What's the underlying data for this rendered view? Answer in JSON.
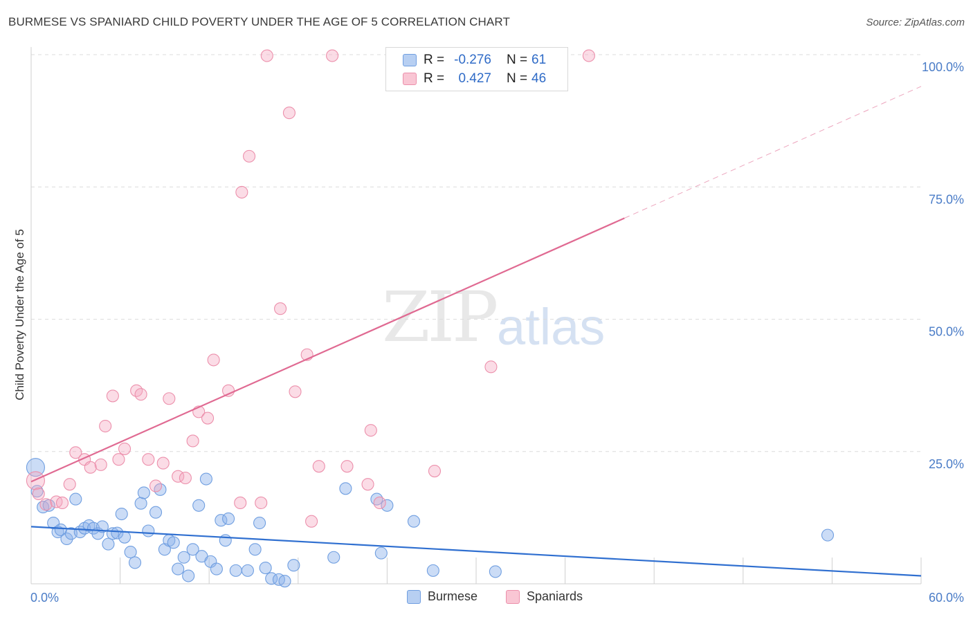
{
  "title": "BURMESE VS SPANIARD CHILD POVERTY UNDER THE AGE OF 5 CORRELATION CHART",
  "source": "Source: ZipAtlas.com",
  "watermark": {
    "zip": "ZIP",
    "atlas": "atlas"
  },
  "legend": {
    "r_label": "R =",
    "n_label": "N =",
    "rows": [
      {
        "r": "-0.276",
        "n": "61",
        "fill": "#b7cff2",
        "stroke": "#6f9ee0"
      },
      {
        "r": "0.427",
        "n": "46",
        "fill": "#f9c6d4",
        "stroke": "#ec8fab"
      }
    ]
  },
  "bottom_legend": [
    {
      "label": "Burmese",
      "fill": "#b7cff2",
      "stroke": "#6f9ee0"
    },
    {
      "label": "Spaniards",
      "fill": "#f9c6d4",
      "stroke": "#ec8fab"
    }
  ],
  "chart_data": {
    "type": "scatter",
    "ylabel": "Child Poverty Under the Age of 5",
    "xlim": [
      0,
      60
    ],
    "ylim": [
      0,
      100
    ],
    "x_ticks": [
      "0.0%",
      "60.0%"
    ],
    "y_ticks": [
      {
        "value": 25,
        "label": "25.0%"
      },
      {
        "value": 50,
        "label": "50.0%"
      },
      {
        "value": 75,
        "label": "75.0%"
      },
      {
        "value": 100,
        "label": "100.0%"
      }
    ],
    "grid": true,
    "series": [
      {
        "name": "Burmese",
        "color": "#7aa6e6",
        "line_color": "#2f6fd0",
        "trend": {
          "x0": 0,
          "y0": 10.8,
          "x1": 60,
          "y1": 1.5,
          "dashed_from": 60
        },
        "points": [
          [
            0.3,
            22.0
          ],
          [
            0.4,
            17.5
          ],
          [
            0.8,
            14.5
          ],
          [
            1.2,
            14.8
          ],
          [
            1.5,
            11.5
          ],
          [
            1.8,
            9.8
          ],
          [
            2.0,
            10.2
          ],
          [
            2.4,
            8.5
          ],
          [
            2.7,
            9.5
          ],
          [
            3.0,
            16.0
          ],
          [
            3.3,
            9.8
          ],
          [
            3.6,
            10.5
          ],
          [
            3.9,
            11.0
          ],
          [
            4.2,
            10.5
          ],
          [
            4.5,
            9.5
          ],
          [
            4.8,
            10.8
          ],
          [
            5.2,
            7.5
          ],
          [
            5.5,
            9.5
          ],
          [
            5.8,
            9.6
          ],
          [
            6.1,
            13.2
          ],
          [
            6.3,
            8.8
          ],
          [
            6.7,
            6.0
          ],
          [
            7.0,
            4.0
          ],
          [
            7.4,
            15.2
          ],
          [
            7.6,
            17.2
          ],
          [
            7.9,
            10.0
          ],
          [
            8.4,
            13.5
          ],
          [
            8.7,
            17.8
          ],
          [
            9.0,
            6.5
          ],
          [
            9.3,
            8.2
          ],
          [
            9.6,
            7.8
          ],
          [
            9.9,
            2.8
          ],
          [
            10.3,
            5.0
          ],
          [
            10.6,
            1.5
          ],
          [
            10.9,
            6.5
          ],
          [
            11.3,
            14.8
          ],
          [
            11.5,
            5.2
          ],
          [
            11.8,
            19.8
          ],
          [
            12.1,
            4.2
          ],
          [
            12.5,
            2.8
          ],
          [
            12.8,
            12.0
          ],
          [
            13.1,
            8.2
          ],
          [
            13.3,
            12.3
          ],
          [
            13.8,
            2.5
          ],
          [
            14.6,
            2.5
          ],
          [
            15.1,
            6.5
          ],
          [
            15.4,
            11.5
          ],
          [
            15.8,
            3.0
          ],
          [
            16.2,
            1.0
          ],
          [
            16.7,
            0.8
          ],
          [
            17.1,
            0.5
          ],
          [
            17.7,
            3.5
          ],
          [
            20.4,
            5.0
          ],
          [
            21.2,
            18.0
          ],
          [
            23.3,
            16.0
          ],
          [
            23.6,
            5.8
          ],
          [
            24.0,
            14.8
          ],
          [
            25.8,
            11.8
          ],
          [
            27.1,
            2.5
          ],
          [
            31.3,
            2.3
          ],
          [
            53.7,
            9.2
          ]
        ]
      },
      {
        "name": "Spaniards",
        "color": "#f3a6bd",
        "line_color": "#e06a92",
        "trend": {
          "x0": 0,
          "y0": 19.3,
          "x1": 60,
          "y1": 94.0,
          "dashed_from": 40
        },
        "points": [
          [
            0.3,
            19.5
          ],
          [
            0.5,
            17.0
          ],
          [
            1.0,
            15.0
          ],
          [
            1.7,
            15.5
          ],
          [
            2.1,
            15.3
          ],
          [
            2.6,
            18.8
          ],
          [
            3.0,
            24.8
          ],
          [
            3.6,
            23.5
          ],
          [
            4.0,
            22.0
          ],
          [
            4.7,
            22.5
          ],
          [
            5.0,
            29.8
          ],
          [
            5.5,
            35.5
          ],
          [
            5.9,
            23.5
          ],
          [
            6.3,
            25.5
          ],
          [
            7.1,
            36.5
          ],
          [
            7.4,
            35.8
          ],
          [
            7.9,
            23.5
          ],
          [
            8.4,
            18.5
          ],
          [
            8.9,
            22.8
          ],
          [
            9.3,
            35.0
          ],
          [
            9.9,
            20.3
          ],
          [
            10.4,
            20.0
          ],
          [
            10.9,
            27.0
          ],
          [
            11.3,
            32.5
          ],
          [
            11.9,
            31.3
          ],
          [
            12.3,
            42.3
          ],
          [
            13.3,
            36.5
          ],
          [
            14.1,
            15.3
          ],
          [
            14.7,
            80.8
          ],
          [
            15.5,
            15.3
          ],
          [
            15.9,
            99.8
          ],
          [
            16.8,
            52.0
          ],
          [
            17.4,
            89.0
          ],
          [
            17.8,
            36.3
          ],
          [
            18.6,
            43.3
          ],
          [
            18.9,
            11.8
          ],
          [
            19.4,
            22.2
          ],
          [
            20.3,
            99.8
          ],
          [
            21.3,
            22.2
          ],
          [
            22.7,
            18.8
          ],
          [
            22.9,
            29.0
          ],
          [
            23.5,
            15.3
          ],
          [
            27.2,
            21.3
          ],
          [
            14.2,
            74.0
          ],
          [
            31.0,
            41.0
          ],
          [
            37.6,
            99.8
          ]
        ]
      }
    ]
  }
}
